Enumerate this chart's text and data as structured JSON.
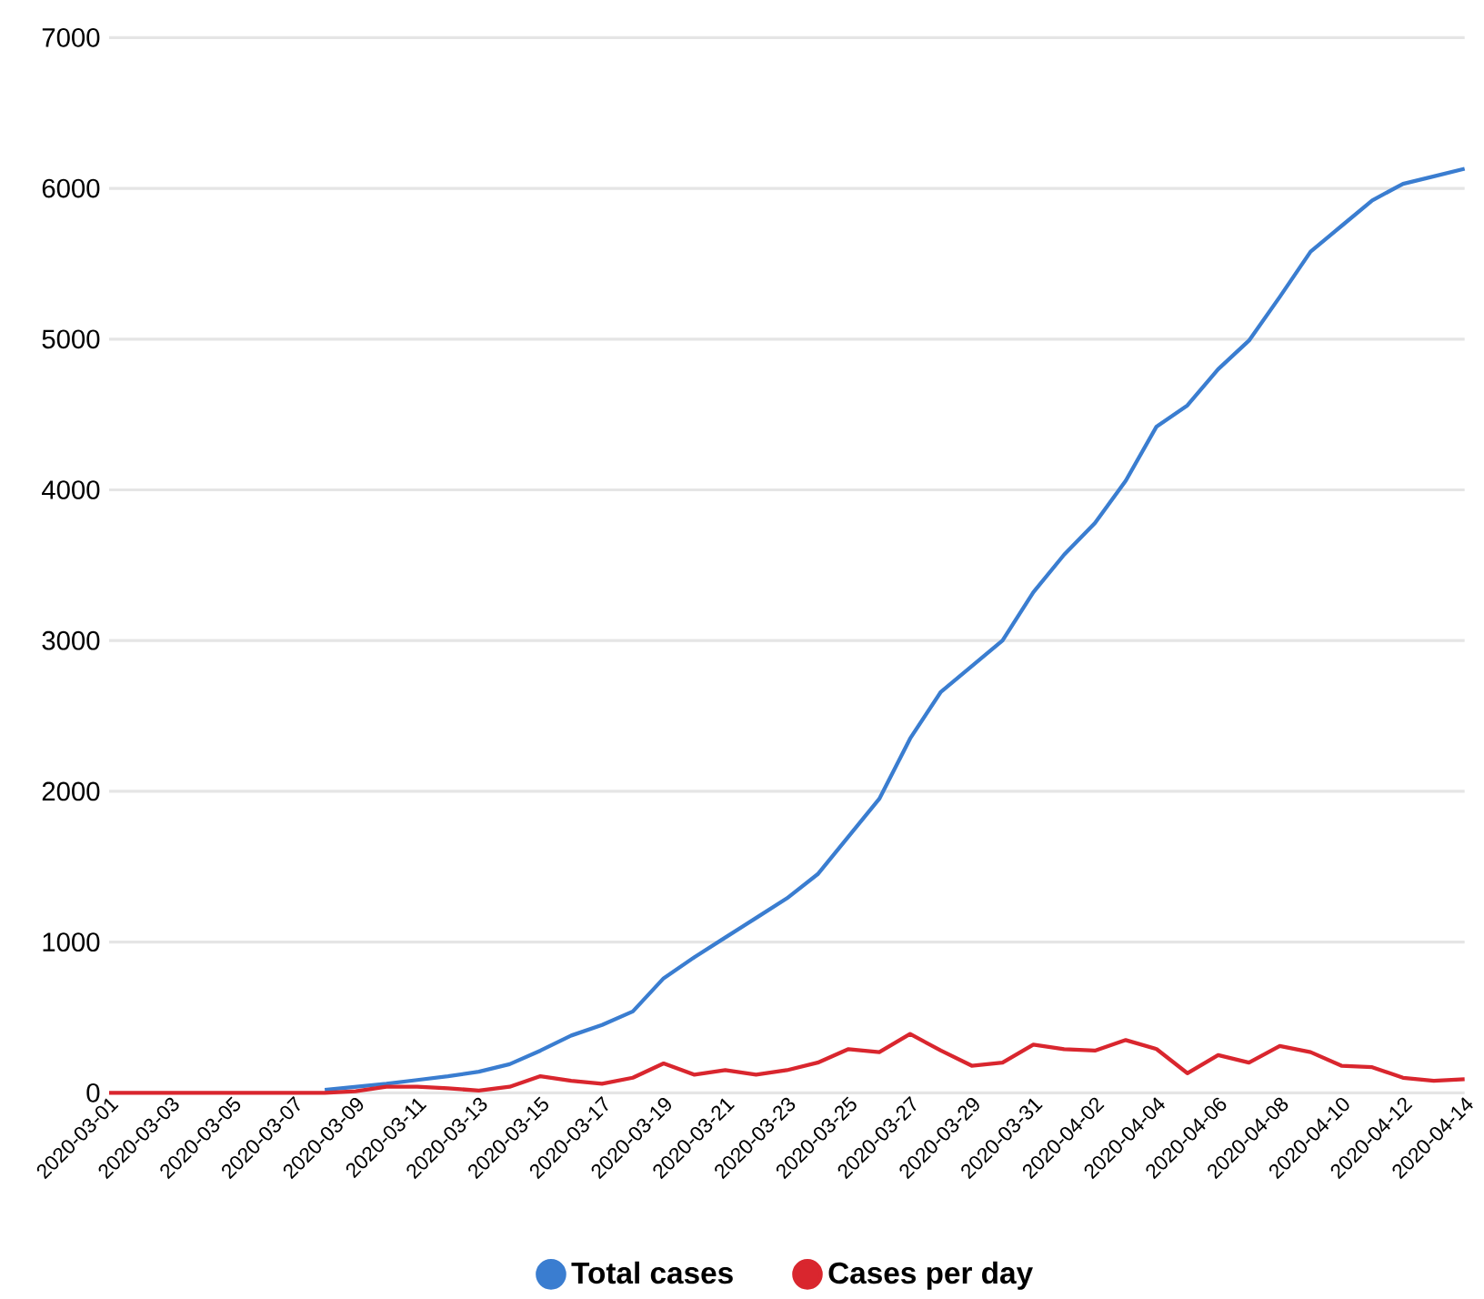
{
  "chart_data": {
    "type": "line",
    "x": [
      "2020-03-01",
      "2020-03-02",
      "2020-03-03",
      "2020-03-04",
      "2020-03-05",
      "2020-03-06",
      "2020-03-07",
      "2020-03-08",
      "2020-03-09",
      "2020-03-10",
      "2020-03-11",
      "2020-03-12",
      "2020-03-13",
      "2020-03-14",
      "2020-03-15",
      "2020-03-16",
      "2020-03-17",
      "2020-03-18",
      "2020-03-19",
      "2020-03-20",
      "2020-03-21",
      "2020-03-22",
      "2020-03-23",
      "2020-03-24",
      "2020-03-25",
      "2020-03-26",
      "2020-03-27",
      "2020-03-28",
      "2020-03-29",
      "2020-03-30",
      "2020-03-31",
      "2020-04-01",
      "2020-04-02",
      "2020-04-03",
      "2020-04-04",
      "2020-04-05",
      "2020-04-06",
      "2020-04-07",
      "2020-04-08",
      "2020-04-09",
      "2020-04-10",
      "2020-04-11",
      "2020-04-12",
      "2020-04-13",
      "2020-04-14"
    ],
    "series": [
      {
        "name": "Total cases",
        "color": "#3a7dd0",
        "values": [
          null,
          null,
          null,
          null,
          null,
          null,
          null,
          20,
          40,
          60,
          85,
          110,
          140,
          190,
          280,
          380,
          450,
          540,
          760,
          900,
          1030,
          1160,
          1290,
          1450,
          1700,
          1950,
          2350,
          2660,
          2830,
          3000,
          3320,
          3570,
          3780,
          4060,
          4420,
          4560,
          4800,
          4990,
          5280,
          5580,
          5750,
          5920,
          6030,
          6080,
          6130
        ]
      },
      {
        "name": "Cases per day",
        "color": "#d9262e",
        "values": [
          0,
          0,
          0,
          0,
          0,
          0,
          0,
          0,
          10,
          40,
          40,
          30,
          15,
          40,
          110,
          80,
          60,
          100,
          195,
          120,
          150,
          120,
          150,
          200,
          290,
          270,
          390,
          280,
          180,
          200,
          320,
          290,
          280,
          350,
          290,
          130,
          250,
          200,
          310,
          270,
          180,
          170,
          100,
          80,
          90
        ]
      }
    ],
    "xlim": [
      "2020-03-01",
      "2020-04-14"
    ],
    "xticks": [
      "2020-03-01",
      "2020-03-03",
      "2020-03-05",
      "2020-03-07",
      "2020-03-09",
      "2020-03-11",
      "2020-03-13",
      "2020-03-15",
      "2020-03-17",
      "2020-03-19",
      "2020-03-21",
      "2020-03-23",
      "2020-03-25",
      "2020-03-27",
      "2020-03-29",
      "2020-03-31",
      "2020-04-02",
      "2020-04-04",
      "2020-04-06",
      "2020-04-08",
      "2020-04-10",
      "2020-04-12",
      "2020-04-14"
    ],
    "ylim": [
      0,
      7000
    ],
    "yticks": [
      0,
      1000,
      2000,
      3000,
      4000,
      5000,
      6000,
      7000
    ],
    "grid": "y",
    "legend": "bottom",
    "marker": "none",
    "line_style": "solid"
  }
}
